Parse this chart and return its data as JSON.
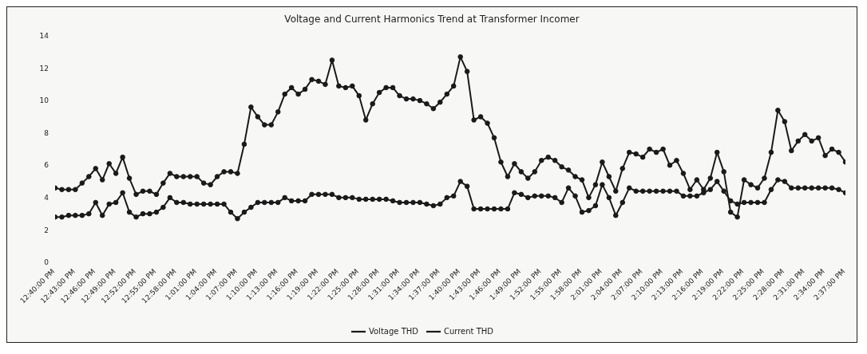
{
  "chart_data": {
    "type": "line",
    "title": "Voltage and Current Harmonics Trend at Transformer Incomer",
    "categories": [
      "12:40:00 PM",
      null,
      null,
      "12:43:00 PM",
      null,
      null,
      "12:46:00 PM",
      null,
      null,
      "12:49:00 PM",
      null,
      null,
      "12:52:00 PM",
      null,
      null,
      "12:55:00 PM",
      null,
      null,
      "12:58:00 PM",
      null,
      null,
      "1:01:00 PM",
      null,
      null,
      "1:04:00 PM",
      null,
      null,
      "1:07:00 PM",
      null,
      null,
      "1:10:00 PM",
      null,
      null,
      "1:13:00 PM",
      null,
      null,
      "1:16:00 PM",
      null,
      null,
      "1:19:00 PM",
      null,
      null,
      "1:22:00 PM",
      null,
      null,
      "1:25:00 PM",
      null,
      null,
      "1:28:00 PM",
      null,
      null,
      "1:31:00 PM",
      null,
      null,
      "1:34:00 PM",
      null,
      null,
      "1:37:00 PM",
      null,
      null,
      "1:40:00 PM",
      null,
      null,
      "1:43:00 PM",
      null,
      null,
      "1:46:00 PM",
      null,
      null,
      "1:49:00 PM",
      null,
      null,
      "1:52:00 PM",
      null,
      null,
      "1:55:00 PM",
      null,
      null,
      "1:58:00 PM",
      null,
      null,
      "2:01:00 PM",
      null,
      null,
      "2:04:00 PM",
      null,
      null,
      "2:07:00 PM",
      null,
      null,
      "2:10:00 PM",
      null,
      null,
      "2:13:00 PM",
      null,
      null,
      "2:16:00 PM",
      null,
      null,
      "2:19:00 PM",
      null,
      null,
      "2:22:00 PM",
      null,
      null,
      "2:25:00 PM",
      null,
      null,
      "2:28:00 PM",
      null,
      null,
      "2:31:00 PM",
      null,
      null,
      "2:34:00 PM",
      null,
      null,
      "2:37:00 PM"
    ],
    "series": [
      {
        "name": "Voltage THD",
        "color": "#1a1a1a",
        "values": [
          2.8,
          2.8,
          2.9,
          2.9,
          2.9,
          3.0,
          3.7,
          2.9,
          3.6,
          3.7,
          4.3,
          3.1,
          2.8,
          3.0,
          3.0,
          3.1,
          3.4,
          4.0,
          3.7,
          3.7,
          3.6,
          3.6,
          3.6,
          3.6,
          3.6,
          3.6,
          3.1,
          2.7,
          3.1,
          3.4,
          3.7,
          3.7,
          3.7,
          3.7,
          4.0,
          3.8,
          3.8,
          3.8,
          4.2,
          4.2,
          4.2,
          4.2,
          4.0,
          4.0,
          4.0,
          3.9,
          3.9,
          3.9,
          3.9,
          3.9,
          3.8,
          3.7,
          3.7,
          3.7,
          3.7,
          3.6,
          3.5,
          3.6,
          4.0,
          4.1,
          5.0,
          4.7,
          3.3,
          3.3,
          3.3,
          3.3,
          3.3,
          3.3,
          4.3,
          4.2,
          4.0,
          4.1,
          4.1,
          4.1,
          4.0,
          3.7,
          4.6,
          4.1,
          3.1,
          3.2,
          3.5,
          4.8,
          4.0,
          2.9,
          3.7,
          4.6,
          4.4,
          4.4,
          4.4,
          4.4,
          4.4,
          4.4,
          4.4,
          4.1,
          4.1,
          4.1,
          4.3,
          4.5,
          5.0,
          4.4,
          3.8,
          3.6,
          3.7,
          3.7,
          3.7,
          3.7,
          4.5,
          5.1,
          5.0,
          4.6,
          4.6,
          4.6,
          4.6,
          4.6,
          4.6,
          4.6,
          4.5,
          4.3
        ]
      },
      {
        "name": "Current THD",
        "color": "#1a1a1a",
        "values": [
          4.6,
          4.5,
          4.5,
          4.5,
          4.9,
          5.3,
          5.8,
          5.1,
          6.1,
          5.5,
          6.5,
          5.2,
          4.2,
          4.4,
          4.4,
          4.2,
          4.9,
          5.5,
          5.3,
          5.3,
          5.3,
          5.3,
          4.9,
          4.8,
          5.3,
          5.6,
          5.6,
          5.5,
          7.3,
          9.6,
          9.0,
          8.5,
          8.5,
          9.3,
          10.4,
          10.8,
          10.4,
          10.7,
          11.3,
          11.2,
          11.0,
          12.5,
          10.9,
          10.8,
          10.9,
          10.3,
          8.8,
          9.8,
          10.5,
          10.8,
          10.8,
          10.3,
          10.1,
          10.1,
          10.0,
          9.8,
          9.5,
          9.9,
          10.4,
          10.9,
          12.7,
          11.8,
          8.8,
          9.0,
          8.6,
          7.7,
          6.2,
          5.3,
          6.1,
          5.6,
          5.2,
          5.6,
          6.3,
          6.5,
          6.3,
          5.9,
          5.7,
          5.3,
          5.1,
          4.0,
          4.8,
          6.2,
          5.3,
          4.4,
          5.8,
          6.8,
          6.7,
          6.5,
          7.0,
          6.8,
          7.0,
          6.0,
          6.3,
          5.5,
          4.5,
          5.1,
          4.5,
          5.2,
          6.8,
          5.6,
          3.1,
          2.8,
          5.1,
          4.8,
          4.6,
          5.2,
          6.8,
          9.4,
          8.7,
          6.9,
          7.5,
          7.9,
          7.5,
          7.7,
          6.6,
          7.0,
          6.8,
          6.2
        ]
      }
    ],
    "ylim": [
      0,
      14
    ],
    "yticks": [
      0,
      2,
      4,
      6,
      8,
      10,
      12,
      14
    ],
    "grid": false,
    "legend": "bottom",
    "marker": "circle",
    "line_style": "solid"
  }
}
